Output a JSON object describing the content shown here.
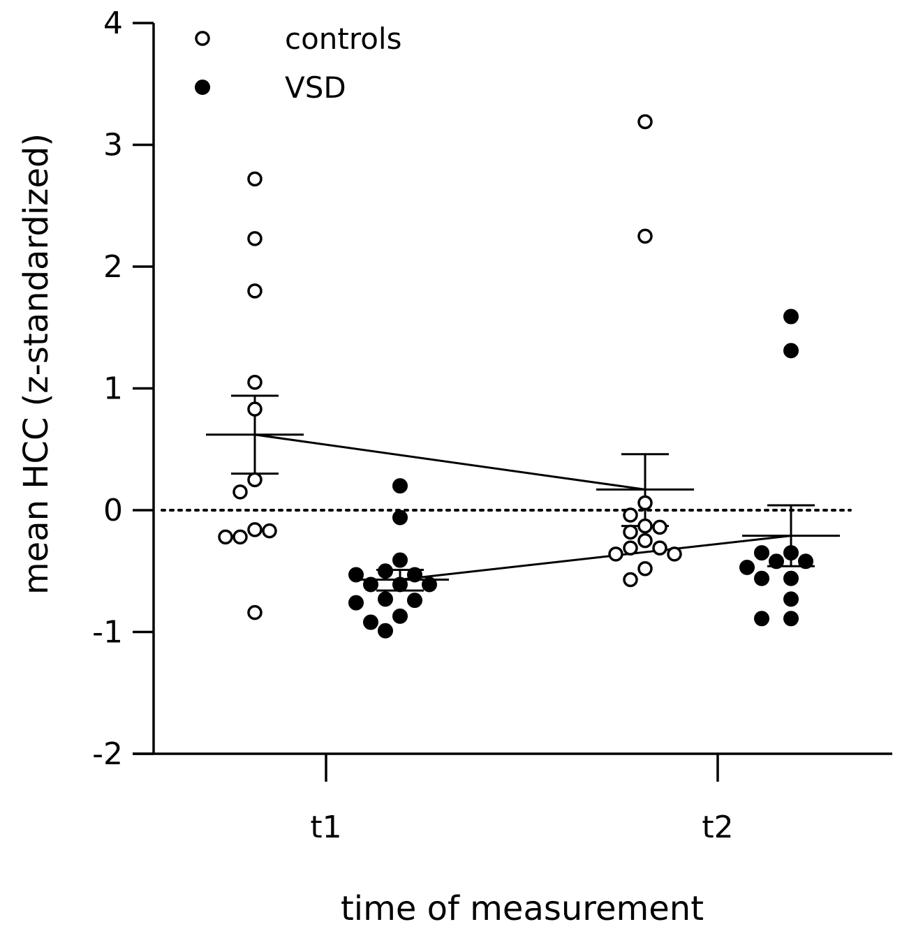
{
  "chart_data": {
    "type": "scatter",
    "xlabel": "time of measurement",
    "ylabel": "mean HCC (z-standardized)",
    "ylim": [
      -2,
      4
    ],
    "yticks": [
      -2,
      -1,
      0,
      1,
      2,
      3,
      4
    ],
    "xticks": [
      "t1",
      "t2"
    ],
    "reference_line": {
      "y": 0,
      "style": "dotted"
    },
    "legend": {
      "placement": "top-left",
      "entries": [
        "controls",
        "VSD"
      ]
    },
    "series": [
      {
        "name": "controls",
        "marker": "open-circle",
        "groups": [
          {
            "time": "t1",
            "mean": 0.62,
            "error_upper": 0.94,
            "error_lower": 0.3,
            "points": [
              2.72,
              2.23,
              1.8,
              1.05,
              0.83,
              0.25,
              0.15,
              -0.16,
              -0.22,
              -0.17,
              -0.22,
              -0.84
            ]
          },
          {
            "time": "t2",
            "mean": 0.17,
            "error_upper": 0.46,
            "error_lower": -0.13,
            "points": [
              3.19,
              2.25,
              0.06,
              -0.04,
              -0.13,
              -0.14,
              -0.18,
              -0.25,
              -0.31,
              -0.31,
              -0.36,
              -0.36,
              -0.48,
              -0.57
            ]
          }
        ]
      },
      {
        "name": "VSD",
        "marker": "filled-circle",
        "groups": [
          {
            "time": "t1",
            "mean": -0.57,
            "error_upper": -0.49,
            "error_lower": -0.66,
            "points": [
              0.2,
              -0.06,
              -0.41,
              -0.5,
              -0.53,
              -0.53,
              -0.61,
              -0.61,
              -0.61,
              -0.73,
              -0.74,
              -0.76,
              -0.87,
              -0.92,
              -0.99
            ]
          },
          {
            "time": "t2",
            "mean": -0.21,
            "error_upper": 0.04,
            "error_lower": -0.46,
            "points": [
              1.59,
              1.31,
              -0.35,
              -0.35,
              -0.42,
              -0.42,
              -0.47,
              -0.56,
              -0.56,
              -0.73,
              -0.89,
              -0.89
            ]
          }
        ]
      }
    ]
  }
}
